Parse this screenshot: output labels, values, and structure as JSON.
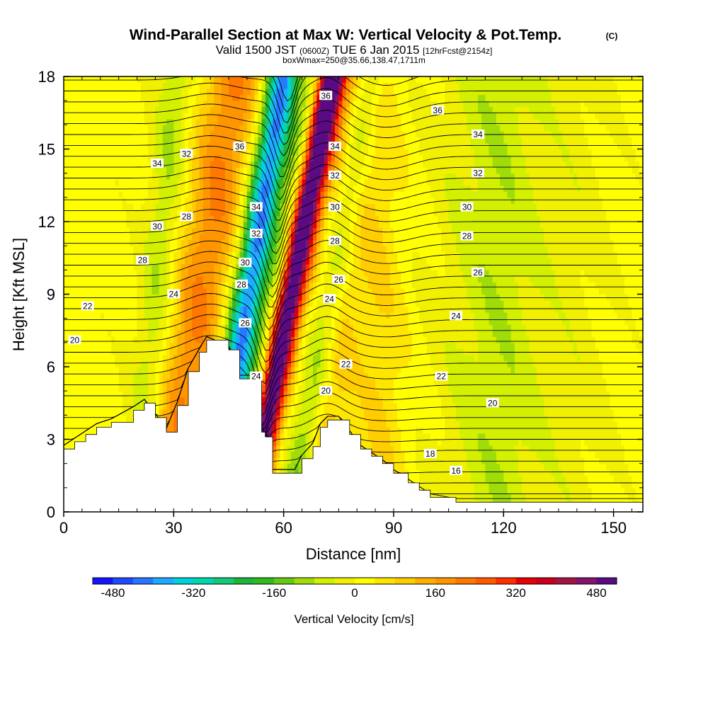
{
  "header": {
    "title": "Wind-Parallel Section at Max W: Vertical Velocity & Pot.Temp.",
    "title_mark": "(C)",
    "subtitle_a": "Valid 1500 JST",
    "subtitle_small": "(0600Z)",
    "subtitle_b": "TUE 6 Jan 2015",
    "subtitle_small2": "[12hrFcst@2154z]",
    "subtitle2": "boxWmax=250@35.66,138.47,1711m"
  },
  "chart_data": {
    "type": "heatmap",
    "xlabel": "Distance [nm]",
    "ylabel": "Height [Kft MSL]",
    "xlim": [
      0,
      158
    ],
    "ylim": [
      0,
      18
    ],
    "x_ticks": [
      0,
      30,
      60,
      90,
      120,
      150
    ],
    "y_ticks": [
      0,
      3,
      6,
      9,
      12,
      15,
      18
    ],
    "terrain_profile": {
      "x": [
        0,
        3,
        6,
        9,
        13,
        19,
        22,
        25,
        28,
        31,
        34,
        37,
        39,
        45,
        48,
        51,
        54,
        55,
        57,
        63,
        65,
        68,
        70,
        72,
        75,
        78,
        81,
        84,
        87,
        90,
        94,
        97,
        100,
        107,
        158
      ],
      "y": [
        2.6,
        2.9,
        3.2,
        3.5,
        3.7,
        4.2,
        4.5,
        3.9,
        3.3,
        4.4,
        5.8,
        6.6,
        7.1,
        6.7,
        5.5,
        5.5,
        3.3,
        3.1,
        1.6,
        1.6,
        2.2,
        2.7,
        3.5,
        3.8,
        3.8,
        3.2,
        2.6,
        2.3,
        2.0,
        1.6,
        1.2,
        0.9,
        0.6,
        0.4,
        0.4
      ]
    },
    "vertical_velocity_bands": [
      {
        "x_base": 20,
        "slant": 0.2,
        "width": 5,
        "w": -100
      },
      {
        "x_base": 28,
        "slant": 0.35,
        "width": 8,
        "w": 180
      },
      {
        "x_base": 41,
        "slant": 0.35,
        "width": 4.5,
        "w": -440
      },
      {
        "x_base": 47,
        "slant": 0.4,
        "width": 3,
        "w": -250
      },
      {
        "x_base": 49,
        "slant": 0.42,
        "width": 4,
        "w": 460
      },
      {
        "x_base": 52,
        "slant": 0.42,
        "width": 3,
        "w": 220
      },
      {
        "x_base": 62,
        "slant": 0.4,
        "width": 4,
        "w": -150
      },
      {
        "x_base": 70,
        "slant": 0.15,
        "width": 6,
        "w": 90
      },
      {
        "x_base": 87,
        "slant": -0.05,
        "width": 7,
        "w": 60
      },
      {
        "x_base": 112,
        "slant": 0.0,
        "width": 14,
        "w": -40
      },
      {
        "x_base": 122,
        "slant": 0.0,
        "width": 14,
        "w": -60
      },
      {
        "x_base": 142,
        "slant": 0.0,
        "width": 8,
        "w": -30
      }
    ],
    "contour_labels": [
      {
        "text": "20",
        "x": 3,
        "y": 7.1
      },
      {
        "text": "22",
        "x": 6.5,
        "y": 8.5
      },
      {
        "text": "28",
        "x": 21.5,
        "y": 10.4
      },
      {
        "text": "30",
        "x": 25.5,
        "y": 11.8
      },
      {
        "text": "34",
        "x": 25.5,
        "y": 14.4
      },
      {
        "text": "32",
        "x": 33.5,
        "y": 14.8
      },
      {
        "text": "28",
        "x": 33.5,
        "y": 12.2
      },
      {
        "text": "24",
        "x": 30,
        "y": 9.0
      },
      {
        "text": "36",
        "x": 48,
        "y": 15.1
      },
      {
        "text": "34",
        "x": 52.5,
        "y": 12.6
      },
      {
        "text": "32",
        "x": 52.5,
        "y": 11.5
      },
      {
        "text": "30",
        "x": 49.5,
        "y": 10.3
      },
      {
        "text": "28",
        "x": 48.5,
        "y": 9.4
      },
      {
        "text": "26",
        "x": 49.5,
        "y": 7.8
      },
      {
        "text": "24",
        "x": 52.5,
        "y": 5.6
      },
      {
        "text": "36",
        "x": 71.5,
        "y": 17.2
      },
      {
        "text": "34",
        "x": 74,
        "y": 15.1
      },
      {
        "text": "32",
        "x": 74,
        "y": 13.9
      },
      {
        "text": "30",
        "x": 74,
        "y": 12.6
      },
      {
        "text": "28",
        "x": 74,
        "y": 11.2
      },
      {
        "text": "26",
        "x": 75,
        "y": 9.6
      },
      {
        "text": "24",
        "x": 72.5,
        "y": 8.8
      },
      {
        "text": "22",
        "x": 77,
        "y": 6.1
      },
      {
        "text": "20",
        "x": 71.5,
        "y": 5.0
      },
      {
        "text": "36",
        "x": 102,
        "y": 16.6
      },
      {
        "text": "34",
        "x": 113,
        "y": 15.6
      },
      {
        "text": "32",
        "x": 113,
        "y": 14.0
      },
      {
        "text": "30",
        "x": 110,
        "y": 12.6
      },
      {
        "text": "28",
        "x": 110,
        "y": 11.4
      },
      {
        "text": "26",
        "x": 113,
        "y": 9.9
      },
      {
        "text": "24",
        "x": 107,
        "y": 8.1
      },
      {
        "text": "22",
        "x": 103,
        "y": 5.6
      },
      {
        "text": "20",
        "x": 117,
        "y": 4.5
      },
      {
        "text": "18",
        "x": 100,
        "y": 2.4
      },
      {
        "text": "16",
        "x": 107,
        "y": 1.7
      }
    ]
  },
  "colorbar": {
    "label": "Vertical Velocity [cm/s]",
    "min": -520,
    "max": 520,
    "tick_values": [
      -480,
      -320,
      -160,
      0,
      160,
      320,
      480
    ],
    "tick_labels": [
      "-480",
      "-320",
      "-160",
      "0",
      "160",
      "320",
      "480"
    ],
    "colors": [
      "#1414ff",
      "#1e4bff",
      "#2878ff",
      "#1eaaff",
      "#00d2dc",
      "#00d7aa",
      "#14c878",
      "#1eb43c",
      "#32b91e",
      "#64c814",
      "#a0dc0a",
      "#d2f000",
      "#f0f000",
      "#ffff00",
      "#ffe600",
      "#ffcd00",
      "#ffaf00",
      "#ff9600",
      "#ff7800",
      "#ff5a00",
      "#ff2d00",
      "#e60000",
      "#c8001e",
      "#a01446",
      "#82146e",
      "#5a0a82"
    ]
  }
}
